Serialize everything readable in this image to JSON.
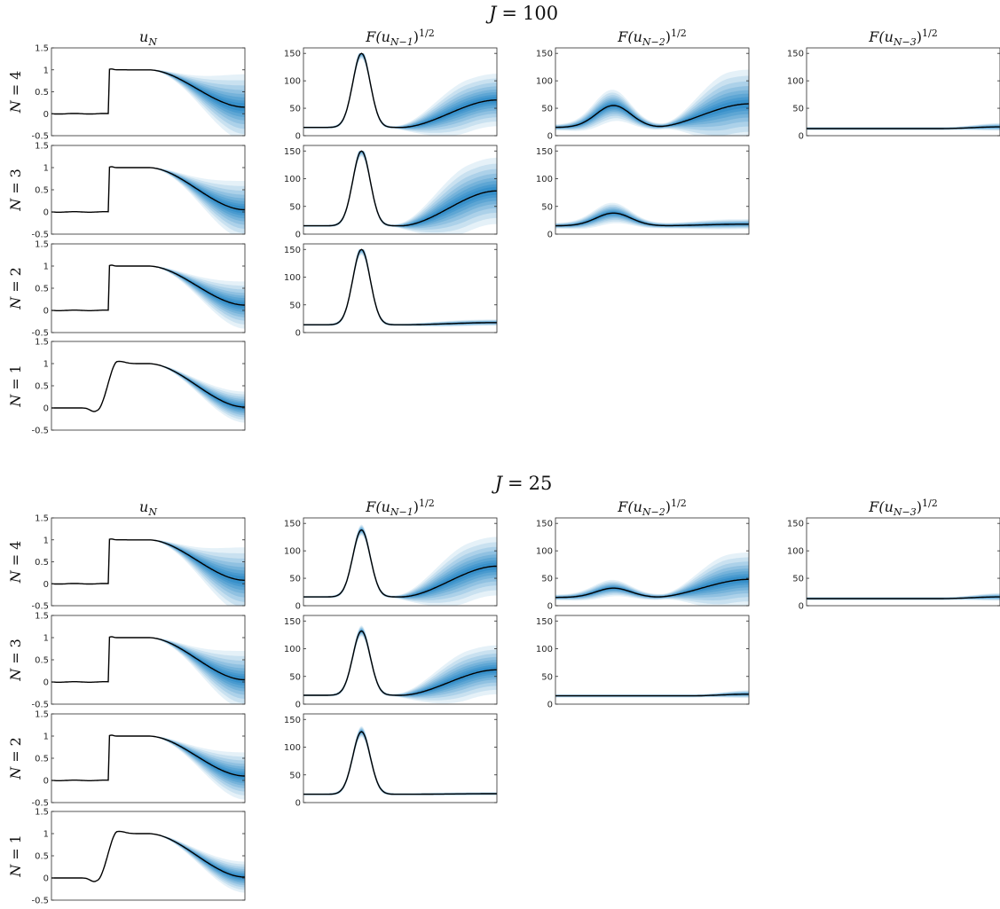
{
  "figure": {
    "groups": [
      {
        "name": "J",
        "op": "=",
        "value": "100"
      },
      {
        "name": "J",
        "op": "=",
        "value": "25"
      }
    ],
    "columns": [
      {
        "base": "u",
        "sub": "N",
        "sup": ""
      },
      {
        "base": "F(u",
        "sub": "N−1",
        "close": ")",
        "sup": "1/2"
      },
      {
        "base": "F(u",
        "sub": "N−2",
        "close": ")",
        "sup": "1/2"
      },
      {
        "base": "F(u",
        "sub": "N−3",
        "close": ")",
        "sup": "1/2"
      }
    ],
    "row_labels": [
      {
        "name": "N",
        "op": "=",
        "value": "4"
      },
      {
        "name": "N",
        "op": "=",
        "value": "3"
      },
      {
        "name": "N",
        "op": "=",
        "value": "2"
      },
      {
        "name": "N",
        "op": "=",
        "value": "1"
      }
    ],
    "colors": {
      "band": "#0072bd",
      "mean_line": "#000000",
      "axes": "#2b2b2b",
      "background": "#ffffff"
    }
  },
  "chart_data": [
    {
      "type": "area",
      "group": 0,
      "row": 0,
      "col": 0,
      "profile": "u",
      "ylim": [
        -0.5,
        1.5
      ],
      "yticks": [
        "1.5",
        "1",
        "0.5",
        "0",
        "-0.5"
      ],
      "band_width": 0.55,
      "band_growth": 1.6,
      "mean_end": 0.15,
      "step": true
    },
    {
      "type": "area",
      "group": 0,
      "row": 0,
      "col": 1,
      "profile": "f1",
      "ylim": [
        0,
        160
      ],
      "yticks": [
        "150",
        "100",
        "50",
        "0"
      ],
      "peak": 150,
      "tail_end": 65,
      "base": 15
    },
    {
      "type": "area",
      "group": 0,
      "row": 0,
      "col": 2,
      "profile": "f2",
      "ylim": [
        0,
        160
      ],
      "yticks": [
        "150",
        "100",
        "50",
        "0"
      ],
      "hump": 55,
      "tail_end": 58,
      "base": 15
    },
    {
      "type": "area",
      "group": 0,
      "row": 0,
      "col": 3,
      "profile": "flat",
      "ylim": [
        0,
        160
      ],
      "yticks": [
        "150",
        "100",
        "50",
        "0"
      ],
      "base": 13,
      "tail_end": 16
    },
    {
      "type": "area",
      "group": 0,
      "row": 1,
      "col": 0,
      "profile": "u",
      "ylim": [
        -0.5,
        1.5
      ],
      "yticks": [
        "1.5",
        "1",
        "0.5",
        "0",
        "-0.5"
      ],
      "band_width": 0.5,
      "band_growth": 1.5,
      "mean_end": 0.05,
      "step": true
    },
    {
      "type": "area",
      "group": 0,
      "row": 1,
      "col": 1,
      "profile": "f1",
      "ylim": [
        0,
        160
      ],
      "yticks": [
        "150",
        "100",
        "50",
        "0"
      ],
      "peak": 150,
      "tail_end": 78,
      "base": 15
    },
    {
      "type": "area",
      "group": 0,
      "row": 1,
      "col": 2,
      "profile": "f2",
      "ylim": [
        0,
        160
      ],
      "yticks": [
        "150",
        "100",
        "50",
        "0"
      ],
      "hump": 38,
      "tail_end": 18,
      "base": 15
    },
    {
      "type": "area",
      "group": 0,
      "row": 2,
      "col": 0,
      "profile": "u",
      "ylim": [
        -0.5,
        1.5
      ],
      "yticks": [
        "1.5",
        "1",
        "0.5",
        "0",
        "-0.5"
      ],
      "band_width": 0.45,
      "band_growth": 1.3,
      "mean_end": 0.12,
      "step": true
    },
    {
      "type": "area",
      "group": 0,
      "row": 2,
      "col": 1,
      "profile": "f1",
      "ylim": [
        0,
        160
      ],
      "yticks": [
        "150",
        "100",
        "50",
        "0"
      ],
      "peak": 150,
      "tail_end": 18,
      "base": 14
    },
    {
      "type": "area",
      "group": 0,
      "row": 3,
      "col": 0,
      "profile": "u",
      "ylim": [
        -0.5,
        1.5
      ],
      "yticks": [
        "1.5",
        "1",
        "0.5",
        "0",
        "-0.5"
      ],
      "band_width": 0.35,
      "band_growth": 1.0,
      "mean_end": 0.02,
      "step": false
    },
    {
      "type": "area",
      "group": 1,
      "row": 0,
      "col": 0,
      "profile": "u",
      "ylim": [
        -0.5,
        1.5
      ],
      "yticks": [
        "1.5",
        "1",
        "0.5",
        "0",
        "-0.5"
      ],
      "band_width": 0.55,
      "band_growth": 1.6,
      "mean_end": 0.08,
      "step": true
    },
    {
      "type": "area",
      "group": 1,
      "row": 0,
      "col": 1,
      "profile": "f1",
      "ylim": [
        0,
        160
      ],
      "yticks": [
        "150",
        "100",
        "50",
        "0"
      ],
      "peak": 138,
      "tail_end": 72,
      "base": 16
    },
    {
      "type": "area",
      "group": 1,
      "row": 0,
      "col": 2,
      "profile": "f2",
      "ylim": [
        0,
        160
      ],
      "yticks": [
        "150",
        "100",
        "50",
        "0"
      ],
      "hump": 32,
      "tail_end": 48,
      "base": 15
    },
    {
      "type": "area",
      "group": 1,
      "row": 0,
      "col": 3,
      "profile": "flat",
      "ylim": [
        0,
        160
      ],
      "yticks": [
        "150",
        "100",
        "50",
        "0"
      ],
      "base": 13,
      "tail_end": 16
    },
    {
      "type": "area",
      "group": 1,
      "row": 1,
      "col": 0,
      "profile": "u",
      "ylim": [
        -0.5,
        1.5
      ],
      "yticks": [
        "1.5",
        "1",
        "0.5",
        "0",
        "-0.5"
      ],
      "band_width": 0.5,
      "band_growth": 1.5,
      "mean_end": 0.05,
      "step": true
    },
    {
      "type": "area",
      "group": 1,
      "row": 1,
      "col": 1,
      "profile": "f1",
      "ylim": [
        0,
        160
      ],
      "yticks": [
        "150",
        "100",
        "50",
        "0"
      ],
      "peak": 132,
      "tail_end": 62,
      "base": 16
    },
    {
      "type": "area",
      "group": 1,
      "row": 1,
      "col": 2,
      "profile": "flat",
      "ylim": [
        0,
        160
      ],
      "yticks": [
        "150",
        "100",
        "50",
        "0"
      ],
      "base": 15,
      "tail_end": 18
    },
    {
      "type": "area",
      "group": 1,
      "row": 2,
      "col": 0,
      "profile": "u",
      "ylim": [
        -0.5,
        1.5
      ],
      "yticks": [
        "1.5",
        "1",
        "0.5",
        "0",
        "-0.5"
      ],
      "band_width": 0.45,
      "band_growth": 1.3,
      "mean_end": 0.1,
      "step": true
    },
    {
      "type": "area",
      "group": 1,
      "row": 2,
      "col": 1,
      "profile": "f1",
      "ylim": [
        0,
        160
      ],
      "yticks": [
        "150",
        "100",
        "50",
        "0"
      ],
      "peak": 128,
      "tail_end": 16,
      "base": 15
    },
    {
      "type": "area",
      "group": 1,
      "row": 3,
      "col": 0,
      "profile": "u",
      "ylim": [
        -0.5,
        1.5
      ],
      "yticks": [
        "1.5",
        "1",
        "0.5",
        "0",
        "-0.5"
      ],
      "band_width": 0.35,
      "band_growth": 1.0,
      "mean_end": 0.02,
      "step": false
    }
  ]
}
